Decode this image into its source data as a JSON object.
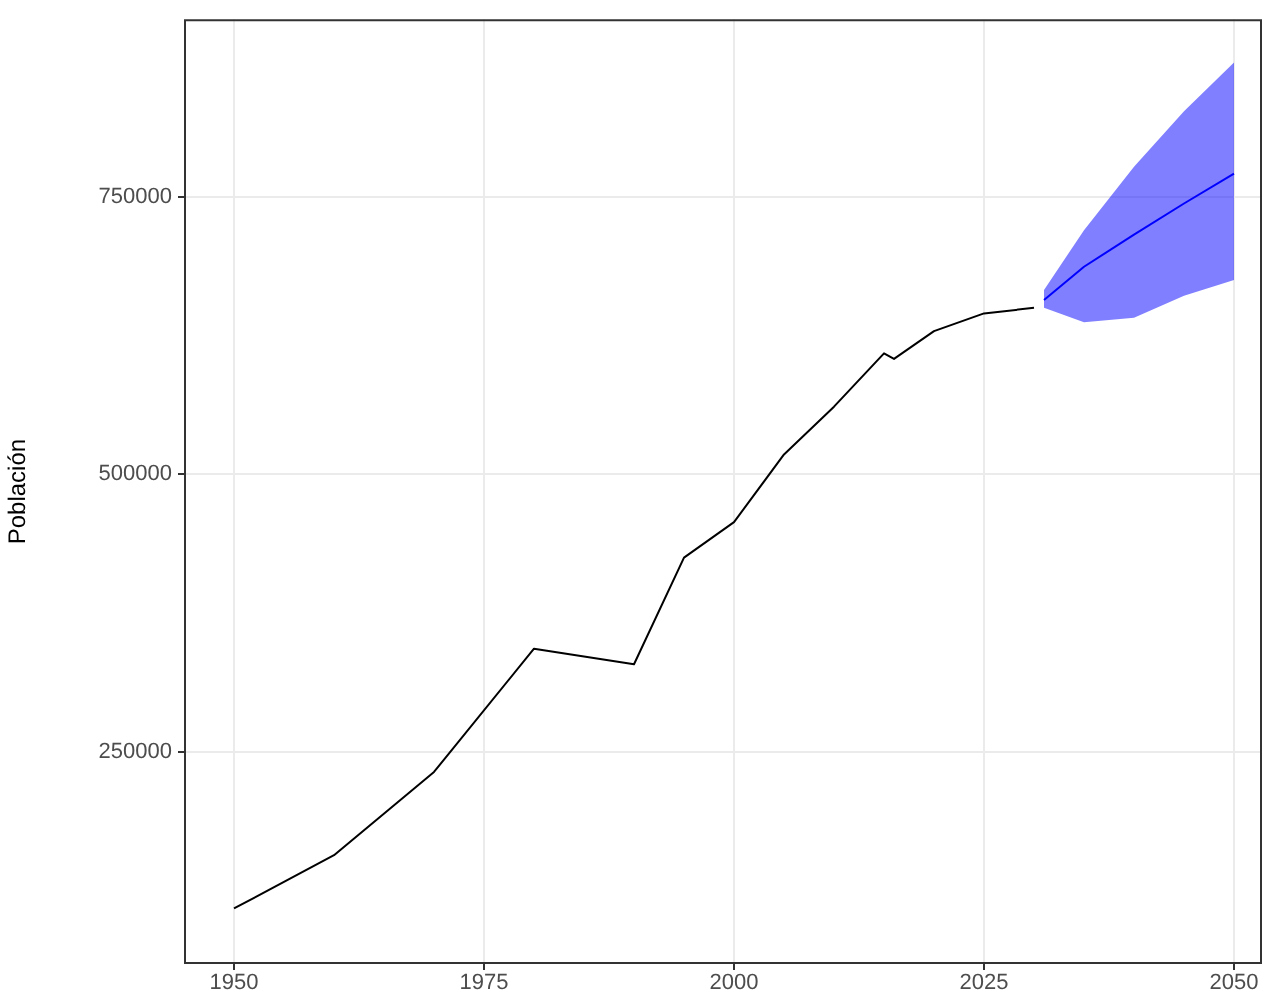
{
  "chart_data": {
    "type": "line",
    "ylabel": "Población",
    "xlim": [
      1945,
      2052.8
    ],
    "xticks": [
      1950,
      1975,
      2000,
      2025,
      2050
    ],
    "ylim": [
      59000,
      910000
    ],
    "yticks": [
      250000,
      500000,
      750000
    ],
    "grid": true,
    "legend": false,
    "series": [
      {
        "color": "#000000",
        "x": [
          1950,
          1960,
          1970,
          1980,
          1990,
          1995,
          2000,
          2005,
          2010,
          2015,
          2016,
          2020,
          2025,
          2030
        ],
        "values": [
          109000,
          157000,
          232000,
          343000,
          329000,
          425000,
          457000,
          518000,
          561000,
          609000,
          604000,
          629000,
          645000,
          650000
        ]
      },
      {
        "color": "#0000ff",
        "x": [
          2031,
          2035,
          2040,
          2045,
          2050
        ],
        "values": [
          657000,
          687000,
          716000,
          744000,
          771000
        ],
        "lower": [
          650000,
          637000,
          641000,
          661000,
          675000
        ],
        "upper": [
          666000,
          720000,
          777000,
          827000,
          871000
        ]
      }
    ]
  }
}
